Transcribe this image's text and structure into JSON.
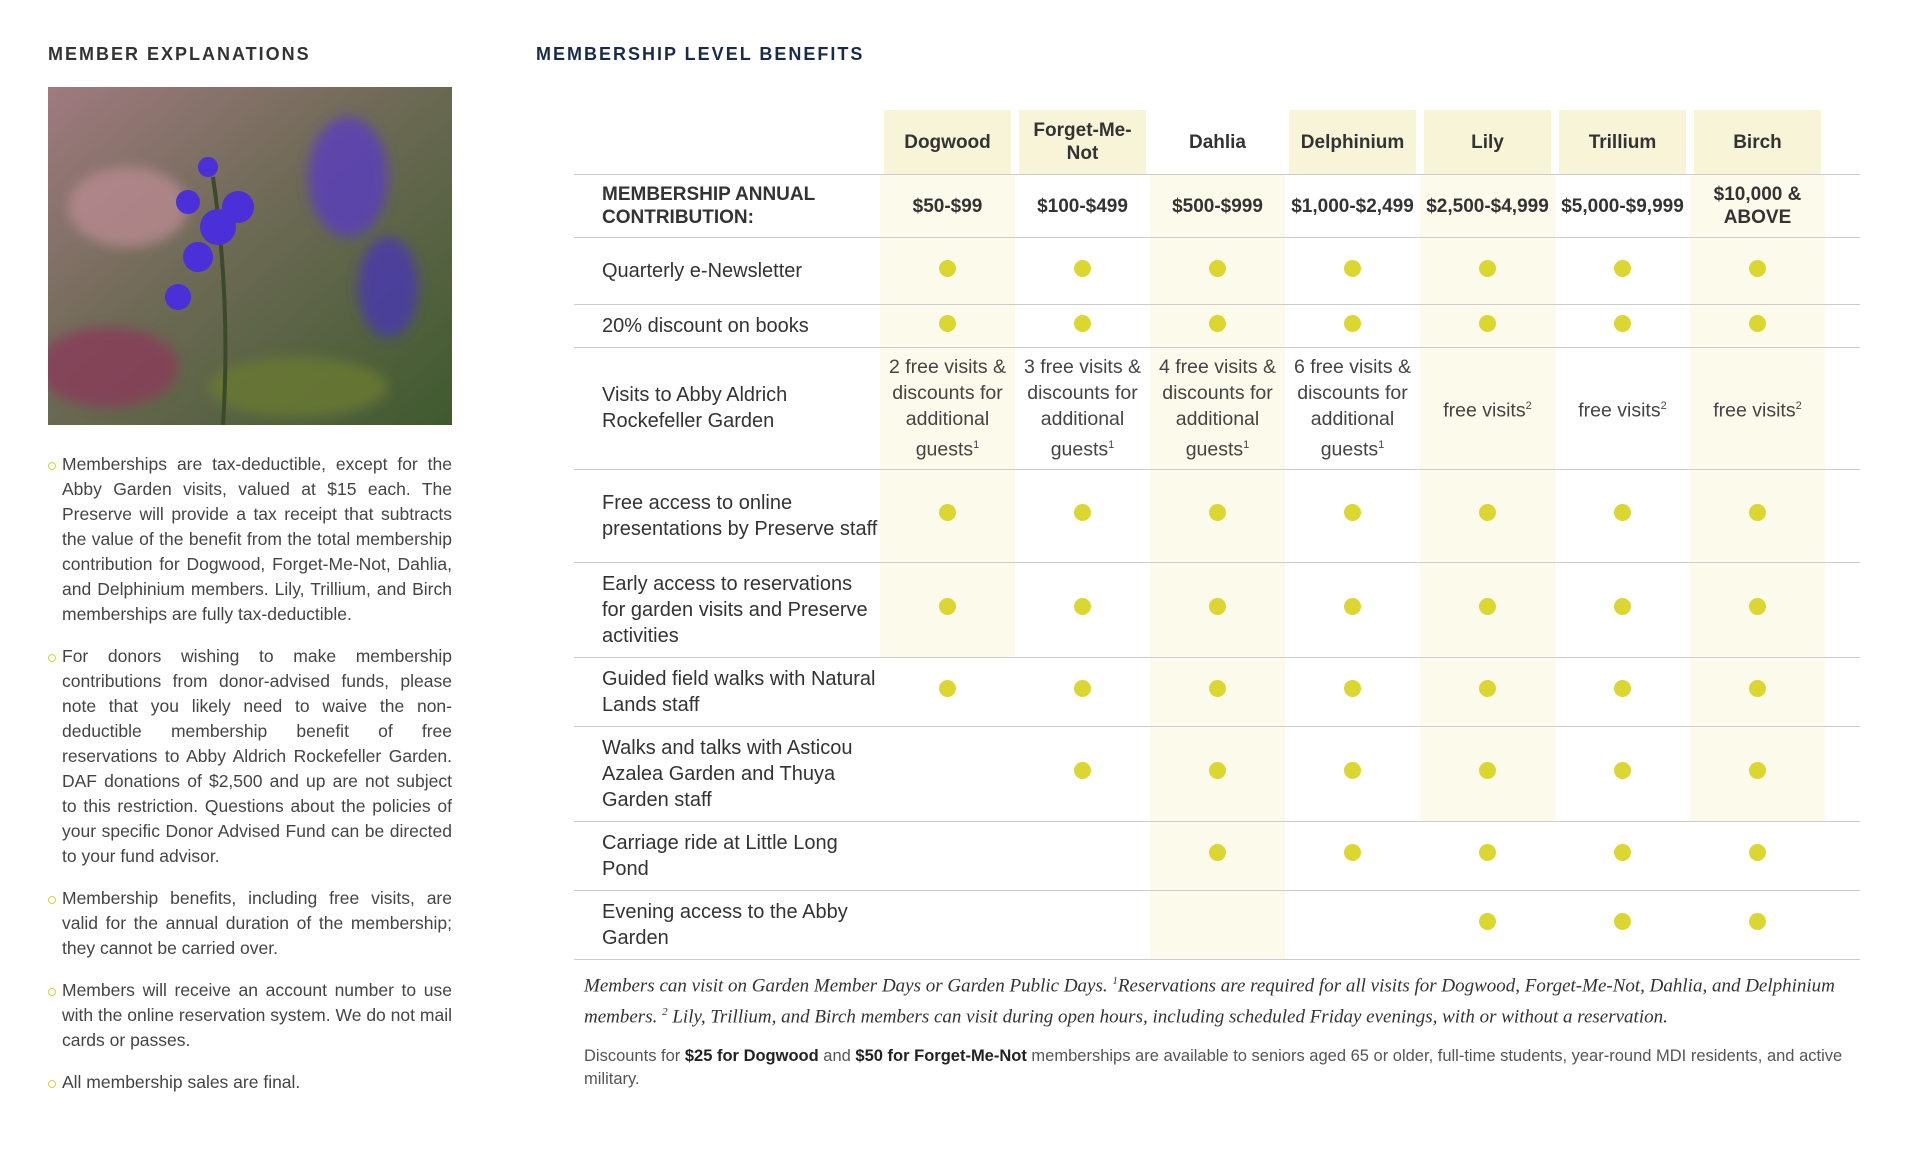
{
  "left": {
    "title": "MEMBER EXPLANATIONS",
    "bullets": [
      "Memberships are tax-deductible, except for the Abby Garden visits, valued at $15 each. The Preserve will provide a tax receipt that subtracts the value of the benefit from the total membership contribution for Dogwood, Forget-Me-Not, Dahlia, and Delphinium members. Lily, Trillium, and Birch memberships are fully tax-deductible.",
      "For donors wishing to make membership contributions from donor-advised funds, please note that you likely need to waive the non-deductible membership benefit of free reservations to Abby Aldrich Rockefeller Garden. DAF donations of $2,500 and up are not subject to this restriction. Questions about the policies of your specific Donor Advised Fund can be directed to your fund advisor.",
      "Membership benefits, including free visits, are valid for the annual duration of the membership; they cannot be carried over.",
      "Members will receive an account number to use with the online reservation system. We do not mail cards or passes.",
      "All membership sales are final."
    ]
  },
  "table": {
    "title": "MEMBERSHIP LEVEL BENEFITS",
    "columns": [
      "Dogwood",
      "Forget-Me-Not",
      "Dahlia",
      "Delphinium",
      "Lily",
      "Trillium",
      "Birch"
    ],
    "rows": [
      {
        "label": "MEMBERSHIP ANNUAL CONTRIBUTION:",
        "cells": [
          "$50-$99",
          "$100-$499",
          "$500-$999",
          "$1,000-$2,499",
          "$2,500-$4,999",
          "$5,000-$9,999",
          "$10,000 & ABOVE"
        ]
      },
      {
        "label": "Quarterly e-Newsletter",
        "cells": [
          true,
          true,
          true,
          true,
          true,
          true,
          true
        ]
      },
      {
        "label": "20% discount on books",
        "cells": [
          true,
          true,
          true,
          true,
          true,
          true,
          true
        ]
      },
      {
        "label": "Visits to Abby Aldrich Rockefeller Garden",
        "cells": [
          {
            "text": "2 free visits & discounts for additional guests",
            "note": "1"
          },
          {
            "text": "3 free visits & discounts for additional guests",
            "note": "1"
          },
          {
            "text": "4 free visits & discounts for additional guests",
            "note": "1"
          },
          {
            "text": "6 free visits & discounts for additional guests",
            "note": "1"
          },
          {
            "text": "free visits",
            "note": "2"
          },
          {
            "text": "free visits",
            "note": "2"
          },
          {
            "text": "free visits",
            "note": "2"
          }
        ]
      },
      {
        "label": "Free access to online presentations by Preserve staff",
        "cells": [
          true,
          true,
          true,
          true,
          true,
          true,
          true
        ]
      },
      {
        "label": "Early access to reservations for garden visits and Preserve activities",
        "cells": [
          true,
          true,
          true,
          true,
          true,
          true,
          true
        ]
      },
      {
        "label": "Guided field walks with Natural Lands staff",
        "cells": [
          true,
          true,
          true,
          true,
          true,
          true,
          true
        ]
      },
      {
        "label": "Walks and talks with Asticou Azalea Garden and Thuya Garden staff",
        "cells": [
          false,
          true,
          true,
          true,
          true,
          true,
          true
        ]
      },
      {
        "label": "Carriage ride at Little Long Pond",
        "cells": [
          false,
          false,
          true,
          true,
          true,
          true,
          true
        ]
      },
      {
        "label": "Evening access to the Abby Garden",
        "cells": [
          false,
          false,
          false,
          false,
          true,
          true,
          true
        ]
      }
    ],
    "notes": [
      [
        {
          "text": "Members can visit on Garden Member Days or Garden Public Days. "
        },
        {
          "text": "1",
          "sup": true
        },
        {
          "text": "Reservations are required for all visits for Dogwood, Forget-Me-Not, Dahlia, and Delphinium members. "
        },
        {
          "text": "2",
          "sup": true
        },
        {
          "text": " Lily, Trillium, and Birch members can visit during open hours, including scheduled Friday evenings, with or without a reservation."
        }
      ],
      [
        {
          "text": "Discounts for "
        },
        {
          "text": "$25 for Dogwood",
          "bold": true
        },
        {
          "text": " and "
        },
        {
          "text": "$50 for Forget-Me-Not",
          "bold": true
        },
        {
          "text": " memberships are available to seniors aged 65 or older, full-time students, year-round MDI residents, and active military."
        }
      ]
    ]
  }
}
